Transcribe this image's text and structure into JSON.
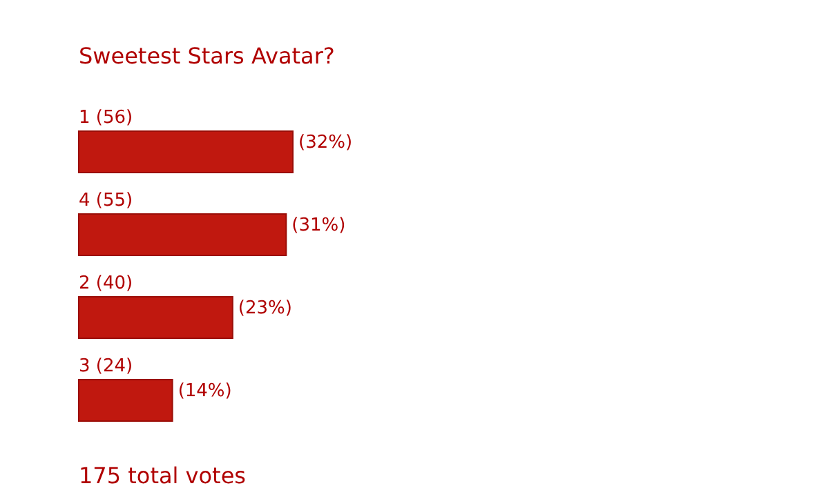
{
  "chart_data": {
    "type": "bar",
    "orientation": "horizontal",
    "title": "Sweetest Stars Avatar?",
    "categories": [
      "1 (56)",
      "4 (55)",
      "2 (40)",
      "3 (24)"
    ],
    "values": [
      32,
      31,
      23,
      14
    ],
    "value_labels": [
      "(32%)",
      "(31%)",
      "(23%)",
      "(14%)"
    ],
    "color": "#c0180f",
    "annotations": [
      "175 total votes"
    ]
  }
}
